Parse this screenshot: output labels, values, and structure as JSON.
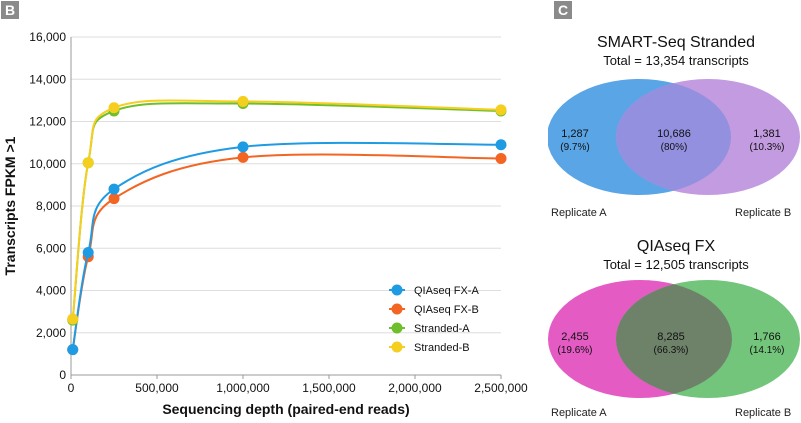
{
  "panels": {
    "left_label": "B",
    "right_label": "C"
  },
  "chart_data": {
    "type": "line",
    "xlabel": "Sequencing depth (paired-end reads)",
    "ylabel": "Transcripts FPKM >1",
    "xlim": [
      0,
      2500000
    ],
    "ylim": [
      0,
      16000
    ],
    "x_ticks": [
      0,
      500000,
      1000000,
      1500000,
      2000000,
      2500000
    ],
    "x_tick_labels": [
      "0",
      "500,000",
      "1,000,000",
      "1,500,000",
      "2,000,000",
      "2,500,000"
    ],
    "y_ticks": [
      0,
      2000,
      4000,
      6000,
      8000,
      10000,
      12000,
      14000,
      16000
    ],
    "y_tick_labels": [
      "0",
      "2,000",
      "4,000",
      "6,000",
      "8,000",
      "10,000",
      "12,000",
      "14,000",
      "16,000"
    ],
    "grid": "horizontal",
    "legend_position": "bottom-right",
    "series": [
      {
        "name": "QIAseq FX-A",
        "color": "#1f9be3",
        "x": [
          10000,
          100000,
          250000,
          1000000,
          2500000
        ],
        "y": [
          1200,
          5800,
          8800,
          10800,
          10900
        ]
      },
      {
        "name": "QIAseq FX-B",
        "color": "#f26522",
        "x": [
          10000,
          100000,
          250000,
          1000000,
          2500000
        ],
        "y": [
          1200,
          5600,
          8350,
          10300,
          10250
        ]
      },
      {
        "name": "Stranded-A",
        "color": "#6fbe2c",
        "x": [
          10000,
          100000,
          250000,
          1000000,
          2500000
        ],
        "y": [
          2600,
          10050,
          12500,
          12850,
          12500
        ]
      },
      {
        "name": "Stranded-B",
        "color": "#f5cf1f",
        "x": [
          10000,
          100000,
          250000,
          1000000,
          2500000
        ],
        "y": [
          2650,
          10050,
          12650,
          12950,
          12550
        ]
      }
    ]
  },
  "venn_smart": {
    "title": "SMART-Seq Stranded",
    "subtitle": "Total = 13,354 transcripts",
    "left_color": "#5aa5e6",
    "right_color": "#c39be0",
    "overlap_color": "#9390e0",
    "left_count": "1,287",
    "left_pct": "(9.7%)",
    "overlap_count": "10,686",
    "overlap_pct": "(80%)",
    "right_count": "1,381",
    "right_pct": "(10.3%)",
    "left_label": "Replicate A",
    "right_label": "Replicate B"
  },
  "venn_qia": {
    "title": "QIAseq FX",
    "subtitle": "Total = 12,505 transcripts",
    "left_color": "#e45bc4",
    "right_color": "#72c57a",
    "overlap_color": "#6e826a",
    "left_count": "2,455",
    "left_pct": "(19.6%)",
    "overlap_count": "8,285",
    "overlap_pct": "(66.3%)",
    "right_count": "1,766",
    "right_pct": "(14.1%)",
    "left_label": "Replicate A",
    "right_label": "Replicate B"
  }
}
